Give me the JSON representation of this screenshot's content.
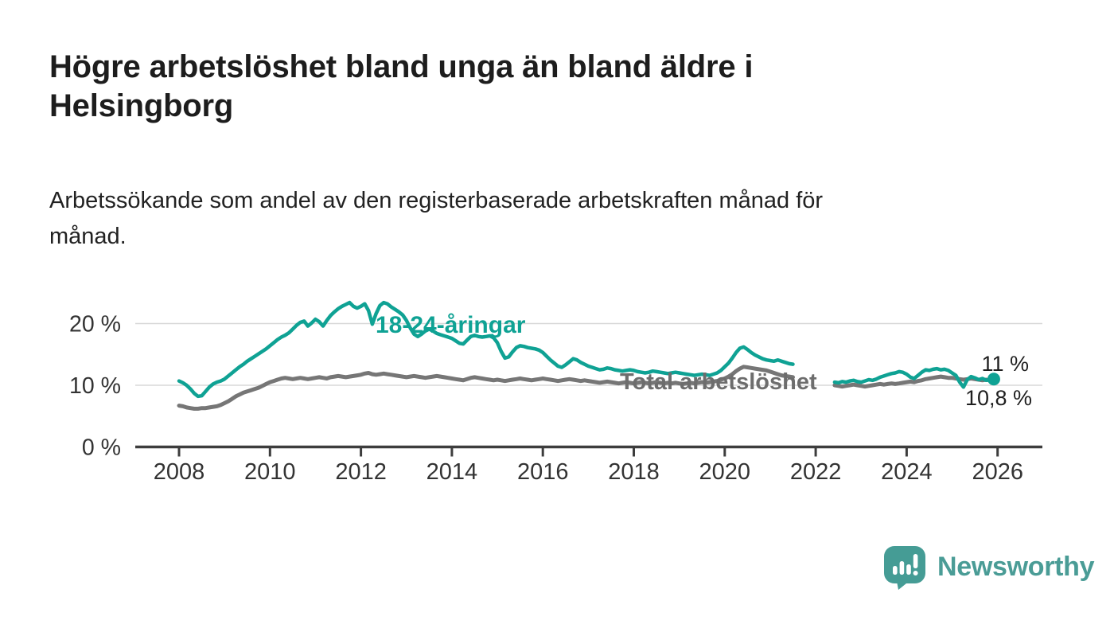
{
  "header": {
    "title_lines": [
      "Högre arbetslöshet bland unga än bland äldre i",
      "Helsingborg"
    ],
    "subtitle_lines": [
      "Arbetssökande som andel av den registerbaserade arbetskraften månad för",
      "månad."
    ]
  },
  "footer": {
    "brand": "Newsworthy",
    "logo_icon": "bar-chart-speech-bubble-icon"
  },
  "colors": {
    "youth_line": "#0fa294",
    "total_line": "#767676",
    "total_label": "#6d6d6d",
    "axis": "#3d3d3d",
    "gridline": "#d8d8d8",
    "text": "#1f1f1f",
    "brand": "#4a9c96"
  },
  "chart_data": {
    "type": "line",
    "title": "Högre arbetslöshet bland unga än bland äldre i Helsingborg",
    "subtitle": "Arbetssökande som andel av den registerbaserade arbetskraften månad för månad.",
    "unit": "%",
    "grid": "horizontal-only",
    "legend_position": "inline-labels",
    "x_axis": {
      "start_year": 2008,
      "start_month": 1,
      "interval": "monthly",
      "ticks": [
        2008,
        2010,
        2012,
        2014,
        2016,
        2018,
        2020,
        2022,
        2024,
        2026
      ]
    },
    "y_axis": {
      "ticks": [
        0,
        10,
        20
      ],
      "tick_format": "{v} %",
      "range": [
        0,
        24
      ]
    },
    "series": [
      {
        "name": "18-24-åringar",
        "color": "#0fa294",
        "end_label": "11 %",
        "end_value": 11.0,
        "values": [
          10.7,
          10.4,
          10.0,
          9.4,
          8.7,
          8.2,
          8.3,
          9.0,
          9.7,
          10.2,
          10.5,
          10.7,
          11.0,
          11.5,
          12.0,
          12.5,
          13.0,
          13.4,
          13.9,
          14.3,
          14.7,
          15.1,
          15.5,
          15.9,
          16.4,
          16.9,
          17.4,
          17.8,
          18.1,
          18.5,
          19.1,
          19.7,
          20.2,
          20.4,
          19.6,
          20.1,
          20.7,
          20.3,
          19.6,
          20.5,
          21.3,
          21.9,
          22.4,
          22.8,
          23.1,
          23.4,
          22.8,
          22.5,
          22.8,
          23.2,
          22.1,
          19.9,
          21.6,
          22.9,
          23.4,
          23.2,
          22.7,
          22.3,
          21.9,
          21.4,
          20.5,
          19.3,
          18.3,
          17.9,
          18.3,
          18.8,
          19.1,
          18.8,
          18.4,
          18.2,
          18.0,
          17.8,
          17.6,
          17.2,
          16.8,
          16.7,
          17.3,
          17.9,
          18.1,
          17.9,
          17.8,
          17.9,
          18.0,
          17.7,
          16.9,
          15.5,
          14.4,
          14.6,
          15.4,
          16.1,
          16.4,
          16.3,
          16.1,
          16.0,
          15.9,
          15.7,
          15.3,
          14.7,
          14.1,
          13.6,
          13.1,
          12.9,
          13.3,
          13.8,
          14.3,
          14.1,
          13.7,
          13.4,
          13.1,
          12.9,
          12.7,
          12.5,
          12.6,
          12.8,
          12.7,
          12.5,
          12.4,
          12.3,
          12.4,
          12.5,
          12.4,
          12.2,
          12.1,
          12.0,
          12.1,
          12.3,
          12.2,
          12.1,
          12.0,
          11.9,
          12.0,
          12.1,
          12.0,
          11.9,
          11.8,
          11.7,
          11.6,
          11.7,
          11.8,
          11.7,
          11.6,
          11.8,
          12.0,
          12.4,
          13.0,
          13.6,
          14.4,
          15.3,
          16.0,
          16.2,
          15.8,
          15.3,
          14.9,
          14.6,
          14.3,
          14.1,
          14.0,
          13.9,
          14.1,
          13.9,
          13.7,
          13.5,
          13.4,
          null,
          null,
          null,
          null,
          null,
          null,
          null,
          null,
          null,
          null,
          10.5,
          10.4,
          10.6,
          10.5,
          10.7,
          10.8,
          10.6,
          10.5,
          10.7,
          10.9,
          10.8,
          11.0,
          11.3,
          11.5,
          11.7,
          11.9,
          12.0,
          12.2,
          12.1,
          11.8,
          11.3,
          11.1,
          11.6,
          12.1,
          12.5,
          12.4,
          12.6,
          12.7,
          12.5,
          12.6,
          12.4,
          12.0,
          11.6,
          10.5,
          9.7,
          10.9,
          11.4,
          11.2,
          10.9,
          11.1,
          10.8,
          10.9,
          11.0
        ]
      },
      {
        "name": "Total arbetslöshet",
        "color": "#767676",
        "end_label": "10,8 %",
        "end_value": 10.8,
        "values": [
          6.7,
          6.6,
          6.4,
          6.3,
          6.2,
          6.2,
          6.3,
          6.3,
          6.4,
          6.5,
          6.6,
          6.8,
          7.1,
          7.4,
          7.8,
          8.2,
          8.5,
          8.8,
          9.0,
          9.2,
          9.4,
          9.6,
          9.9,
          10.2,
          10.5,
          10.7,
          10.9,
          11.1,
          11.2,
          11.1,
          11.0,
          11.1,
          11.2,
          11.1,
          11.0,
          11.1,
          11.2,
          11.3,
          11.2,
          11.1,
          11.3,
          11.4,
          11.5,
          11.4,
          11.3,
          11.4,
          11.5,
          11.6,
          11.7,
          11.9,
          12.0,
          11.8,
          11.7,
          11.8,
          11.9,
          11.8,
          11.7,
          11.6,
          11.5,
          11.4,
          11.3,
          11.4,
          11.5,
          11.4,
          11.3,
          11.2,
          11.3,
          11.4,
          11.5,
          11.4,
          11.3,
          11.2,
          11.1,
          11.0,
          10.9,
          10.8,
          11.0,
          11.2,
          11.3,
          11.2,
          11.1,
          11.0,
          10.9,
          10.8,
          10.9,
          10.8,
          10.7,
          10.8,
          10.9,
          11.0,
          11.1,
          11.0,
          10.9,
          10.8,
          10.9,
          11.0,
          11.1,
          11.0,
          10.9,
          10.8,
          10.7,
          10.8,
          10.9,
          11.0,
          10.9,
          10.8,
          10.7,
          10.8,
          10.7,
          10.6,
          10.5,
          10.4,
          10.5,
          10.6,
          10.5,
          10.4,
          10.3,
          10.4,
          10.5,
          10.4,
          10.3,
          10.4,
          10.5,
          10.4,
          10.3,
          10.4,
          10.5,
          10.4,
          10.3,
          10.4,
          10.3,
          10.4,
          10.3,
          10.2,
          10.3,
          10.4,
          10.3,
          10.4,
          10.5,
          10.4,
          10.5,
          10.6,
          10.7,
          10.9,
          11.1,
          11.4,
          11.8,
          12.3,
          12.7,
          13.0,
          12.9,
          12.8,
          12.7,
          12.6,
          12.5,
          12.4,
          12.2,
          12.0,
          11.8,
          11.6,
          11.5,
          11.4,
          11.3,
          null,
          null,
          null,
          null,
          null,
          null,
          null,
          null,
          null,
          null,
          10.0,
          9.9,
          9.8,
          9.9,
          10.0,
          10.1,
          10.0,
          9.9,
          9.8,
          9.9,
          10.0,
          10.1,
          10.2,
          10.1,
          10.2,
          10.3,
          10.2,
          10.3,
          10.4,
          10.5,
          10.6,
          10.5,
          10.7,
          10.8,
          11.0,
          11.1,
          11.2,
          11.3,
          11.4,
          11.3,
          11.2,
          11.2,
          11.1,
          11.0,
          10.9,
          11.0,
          11.1,
          11.0,
          10.9,
          10.8,
          10.9,
          10.8,
          10.8
        ]
      }
    ]
  }
}
